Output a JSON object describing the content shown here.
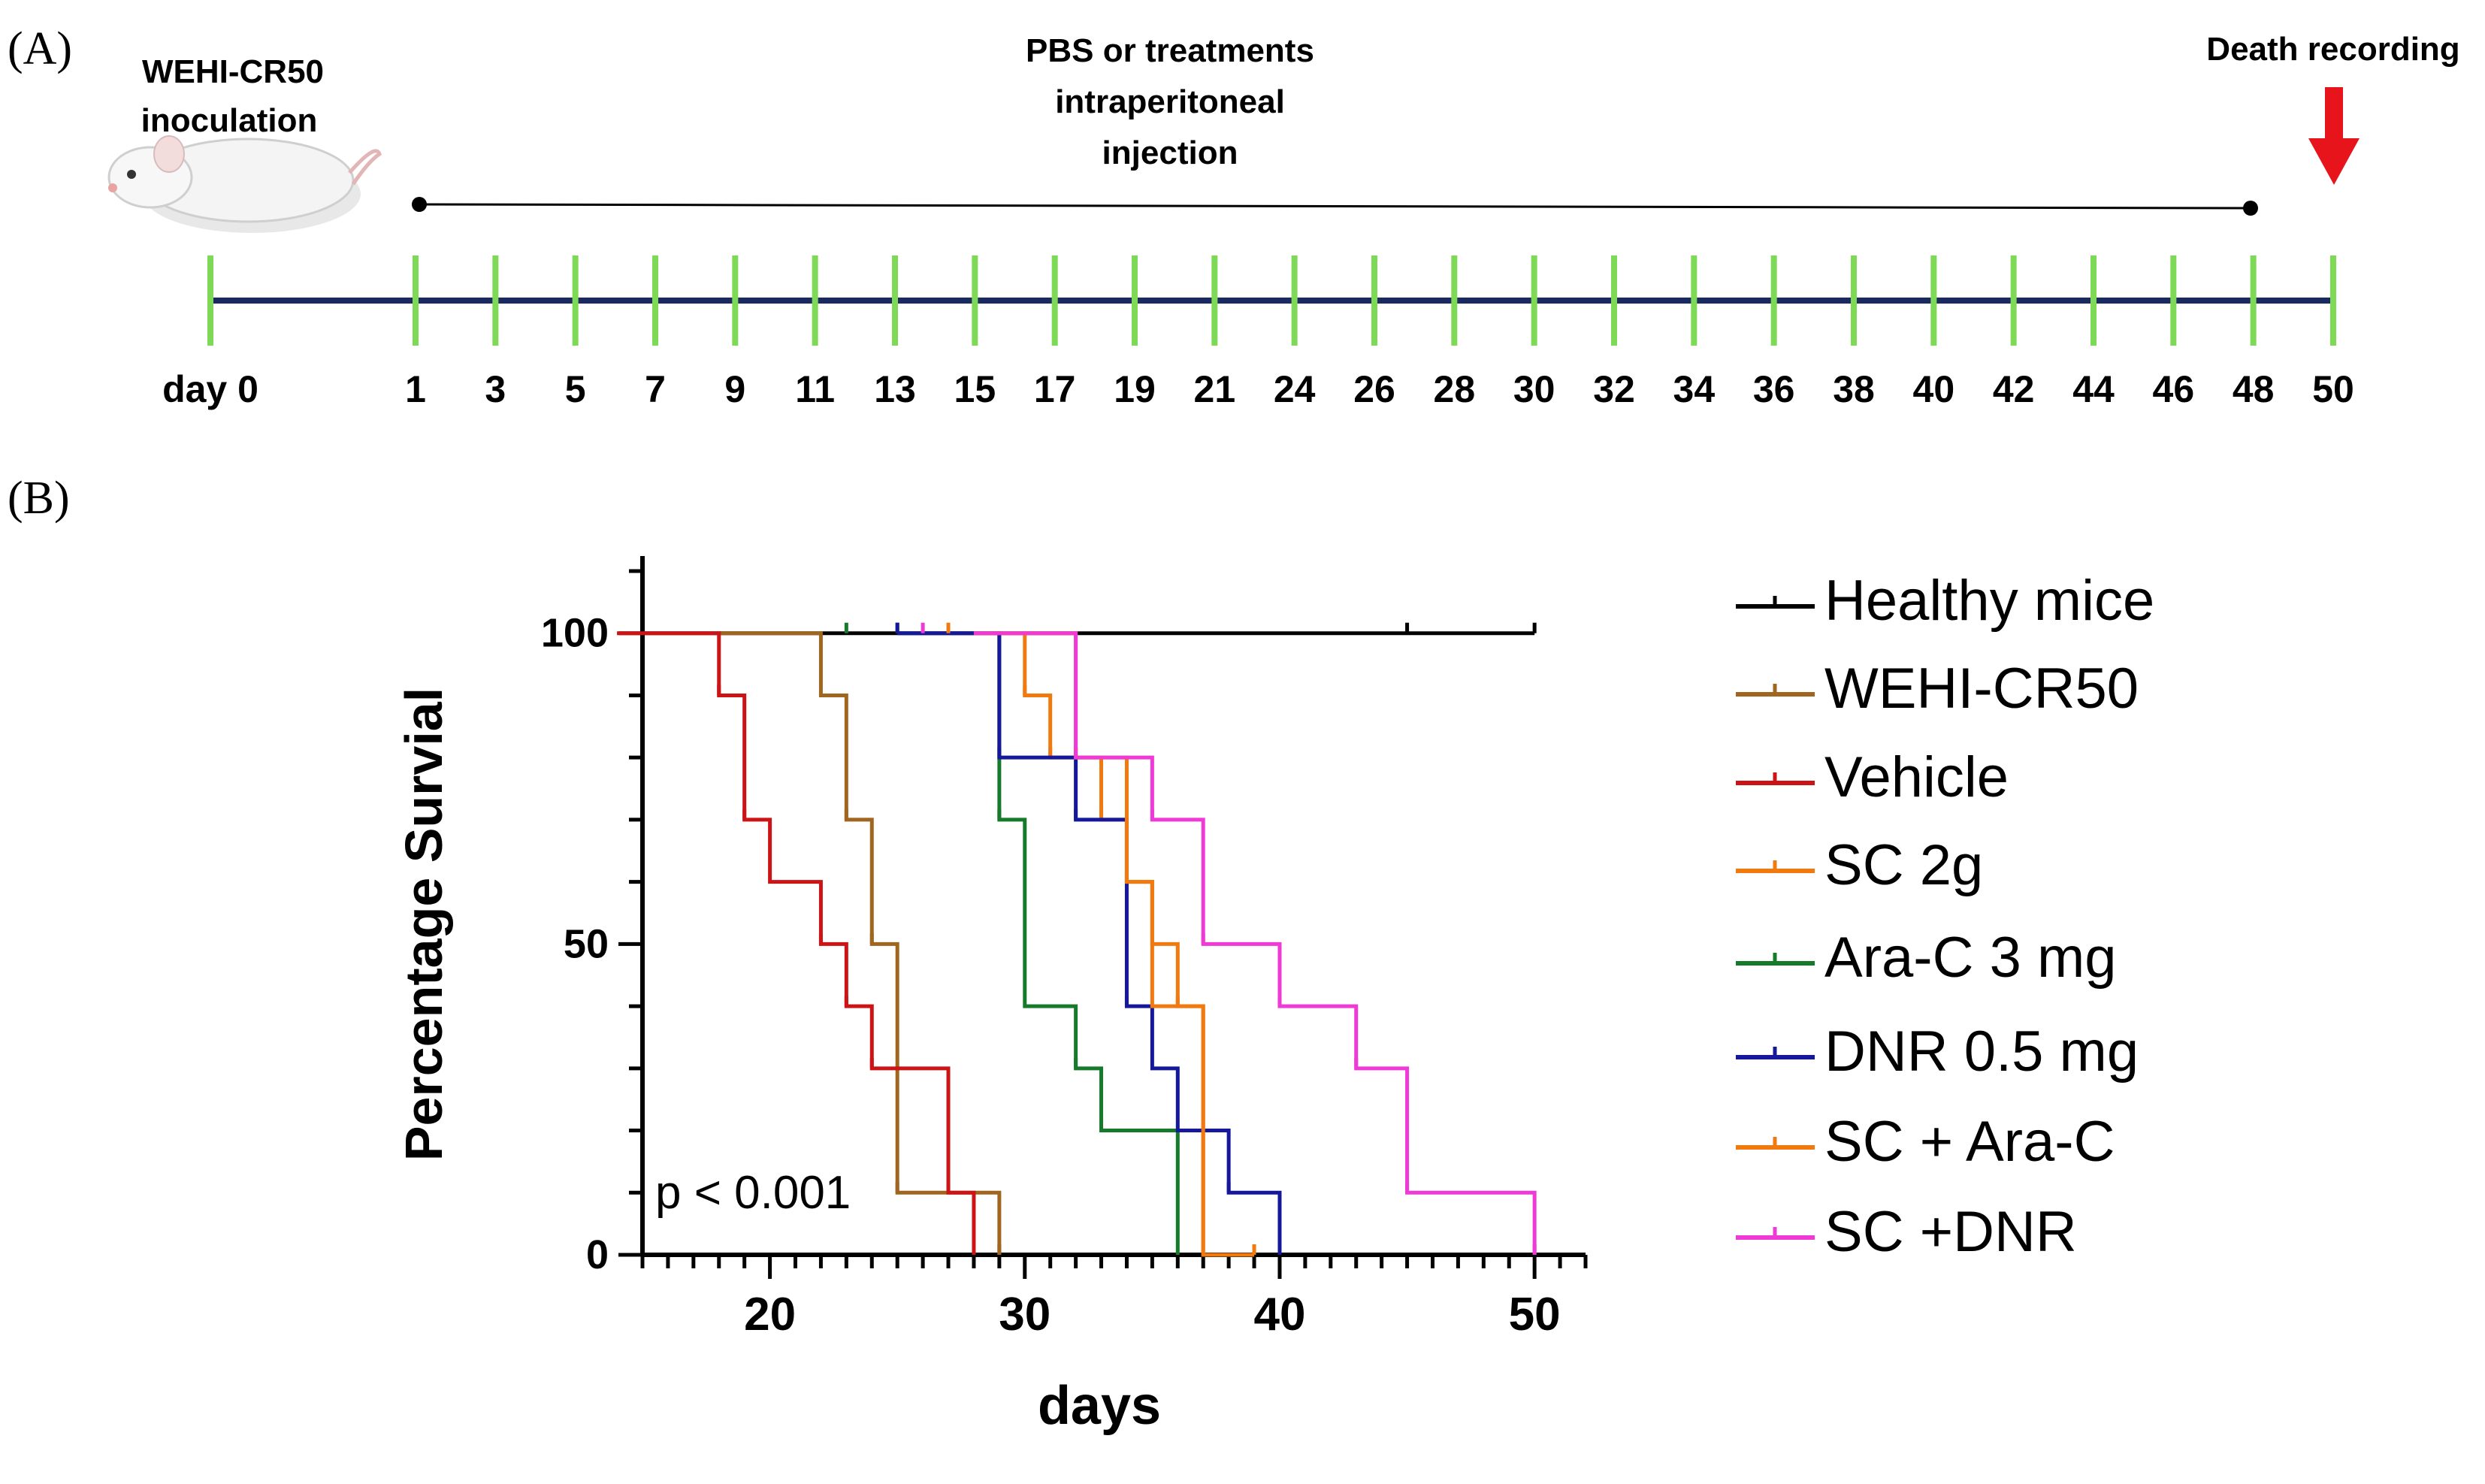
{
  "panel_a": {
    "label": "(A)",
    "inoculation_label": [
      "WEHI-CR50",
      "inoculation"
    ],
    "treatment_label": [
      "PBS or treatments",
      "intraperitoneal",
      "injection"
    ],
    "death_label": "Death recording",
    "day0_label": "day 0",
    "days": [
      1,
      3,
      5,
      7,
      9,
      11,
      13,
      15,
      17,
      19,
      21,
      24,
      26,
      28,
      30,
      32,
      34,
      36,
      38,
      40,
      42,
      44,
      46,
      48,
      50
    ],
    "timeline_color": "#1a2a5e",
    "tick_color": "#7ed957",
    "arrow_color": "#e8141b"
  },
  "panel_b": {
    "label": "(B)"
  },
  "chart_data": {
    "type": "line",
    "subtype": "kaplan-meier step",
    "title": "",
    "xlabel": "days",
    "ylabel": "Percentage Survial",
    "xlim": [
      15,
      52
    ],
    "ylim": [
      0,
      110
    ],
    "xticks": [
      20,
      30,
      40,
      50
    ],
    "yticks": [
      0,
      50,
      100
    ],
    "annotation": "p < 0.001",
    "series": [
      {
        "name": "Healthy mice",
        "color": "#000000",
        "x": [
          15,
          50
        ],
        "y": [
          100,
          100
        ],
        "censor": [
          45,
          50
        ]
      },
      {
        "name": "WEHI-CR50",
        "color": "#a0651e",
        "x": [
          22,
          23,
          24,
          25,
          29
        ],
        "y": [
          90,
          70,
          50,
          10,
          0
        ],
        "censor": [
          23,
          24,
          25,
          29
        ]
      },
      {
        "name": "Vehicle",
        "color": "#cc1417",
        "x": [
          18,
          19,
          20,
          22,
          23,
          24,
          27,
          28
        ],
        "y": [
          90,
          70,
          60,
          50,
          40,
          30,
          10,
          0
        ],
        "censor": [
          18,
          19,
          22,
          23,
          24,
          27
        ]
      },
      {
        "name": "SC 2g",
        "color": "#f07a10",
        "x": [
          30,
          31,
          32,
          33,
          34,
          35,
          36,
          37
        ],
        "y": [
          90,
          80,
          80,
          70,
          60,
          50,
          40,
          0
        ],
        "censor": [
          30,
          31,
          33,
          34,
          36
        ]
      },
      {
        "name": "Ara-C 3 mg",
        "color": "#157a2a",
        "x": [
          29,
          30,
          32,
          33,
          36
        ],
        "y": [
          70,
          40,
          30,
          20,
          0
        ],
        "censor": [
          23,
          25,
          29,
          32
        ]
      },
      {
        "name": "DNR 0.5 mg",
        "color": "#15189a",
        "x": [
          29,
          32,
          34,
          35,
          36,
          38,
          40
        ],
        "y": [
          80,
          70,
          40,
          30,
          20,
          10,
          0
        ],
        "censor": [
          25,
          29,
          32,
          34,
          38
        ]
      },
      {
        "name": "SC + Ara-C",
        "color": "#f07a10",
        "x": [
          32,
          34,
          35,
          37,
          39
        ],
        "y": [
          80,
          60,
          40,
          0,
          0
        ],
        "censor": [
          27,
          32,
          39
        ]
      },
      {
        "name": "SC +DNR",
        "color": "#f03ad6",
        "x": [
          32,
          35,
          37,
          40,
          43,
          45,
          50
        ],
        "y": [
          80,
          70,
          50,
          40,
          30,
          10,
          0
        ],
        "censor": [
          26,
          32,
          35,
          37,
          40,
          43,
          45,
          50
        ]
      }
    ]
  }
}
